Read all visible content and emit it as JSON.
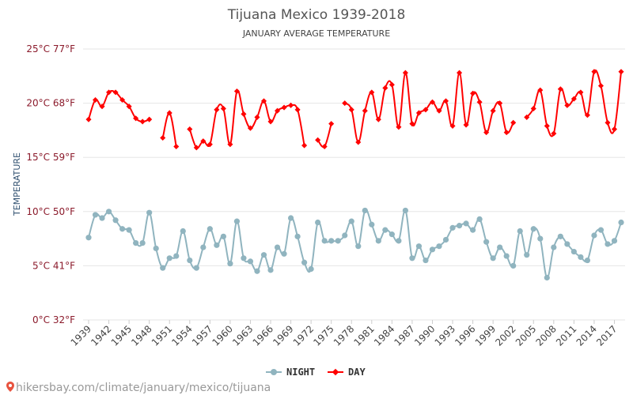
{
  "chart_data": {
    "type": "line",
    "title": "Tijuana Mexico 1939-2018",
    "subtitle": "JANUARY AVERAGE TEMPERATURE",
    "ylabel": "TEMPERATURE",
    "ylim": [
      0,
      25
    ],
    "y_ticks": [
      {
        "value": 0,
        "label": "0°C 32°F"
      },
      {
        "value": 5,
        "label": "5°C 41°F"
      },
      {
        "value": 10,
        "label": "10°C 50°F"
      },
      {
        "value": 15,
        "label": "15°C 59°F"
      },
      {
        "value": 20,
        "label": "20°C 68°F"
      },
      {
        "value": 25,
        "label": "25°C 77°F"
      }
    ],
    "x_start": 1939,
    "x_end": 2018,
    "x_tick_labels": [
      "1939",
      "1942",
      "1945",
      "1948",
      "1951",
      "1954",
      "1957",
      "1960",
      "1963",
      "1966",
      "1969",
      "1972",
      "1975",
      "1978",
      "1981",
      "1984",
      "1987",
      "1990",
      "1993",
      "1996",
      "1999",
      "2002",
      "2005",
      "2008",
      "2011",
      "2014",
      "2017"
    ],
    "grid": true,
    "legend_position": "bottom-center",
    "series": [
      {
        "name": "NIGHT",
        "color": "#90b4bf",
        "marker": "circle",
        "values": [
          7.6,
          9.7,
          9.4,
          10.0,
          9.2,
          8.4,
          8.3,
          7.1,
          7.1,
          9.9,
          6.6,
          4.8,
          5.7,
          5.9,
          8.2,
          5.5,
          4.8,
          6.7,
          8.4,
          6.9,
          7.7,
          5.2,
          9.1,
          5.7,
          5.4,
          4.5,
          6.0,
          4.6,
          6.7,
          6.1,
          9.4,
          7.7,
          5.3,
          4.7,
          9.0,
          7.3,
          7.3,
          7.3,
          7.8,
          9.1,
          6.8,
          10.1,
          8.8,
          7.3,
          8.3,
          7.9,
          7.3,
          10.1,
          5.7,
          6.8,
          5.5,
          6.5,
          6.8,
          7.4,
          8.5,
          8.7,
          8.9,
          8.3,
          9.3,
          7.2,
          5.7,
          6.7,
          5.9,
          5.0,
          8.2,
          6.0,
          8.4,
          7.5,
          3.9,
          6.7,
          7.7,
          7.0,
          6.3,
          5.8,
          5.5,
          7.8,
          8.3,
          7.0,
          7.3,
          9.0
        ]
      },
      {
        "name": "DAY",
        "color": "#ff0000",
        "marker": "diamond",
        "values": [
          18.5,
          20.3,
          19.7,
          21.0,
          21.0,
          20.3,
          19.7,
          18.6,
          18.3,
          18.5,
          null,
          16.8,
          19.1,
          16.0,
          null,
          17.6,
          15.9,
          16.5,
          16.2,
          19.4,
          19.5,
          16.2,
          21.1,
          19.0,
          17.7,
          18.7,
          20.2,
          18.3,
          19.3,
          19.6,
          19.8,
          19.4,
          16.1,
          null,
          16.6,
          16.0,
          18.1,
          null,
          20.0,
          19.4,
          16.4,
          19.3,
          21.0,
          18.5,
          21.4,
          21.7,
          17.8,
          22.8,
          18.1,
          19.1,
          19.4,
          20.1,
          19.3,
          20.2,
          17.9,
          22.8,
          18.0,
          20.9,
          20.1,
          17.3,
          19.3,
          20.0,
          17.3,
          18.2,
          null,
          18.7,
          19.5,
          21.2,
          17.9,
          17.2,
          21.3,
          19.8,
          20.4,
          21.0,
          18.9,
          22.9,
          21.6,
          18.2,
          17.6,
          22.9
        ]
      }
    ]
  },
  "footer": {
    "text": "hikersbay.com/climate/january/mexico/tijuana"
  }
}
